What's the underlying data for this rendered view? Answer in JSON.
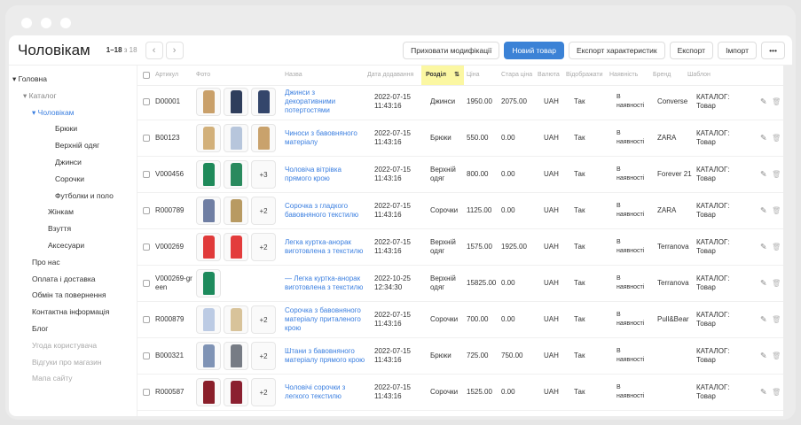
{
  "header": {
    "title": "Чоловікам",
    "range": "1–18",
    "of": "з 18",
    "prev": "‹",
    "next": "›",
    "buttons": {
      "hide_mods": "Приховати модифікації",
      "new_item": "Новий товар",
      "export_chars": "Експорт характеристик",
      "export": "Експорт",
      "import": "Імпорт",
      "more": "•••"
    }
  },
  "accent": "#3b82d6",
  "sidebar": [
    {
      "label": "Головна",
      "level": 0,
      "caret": true,
      "style": "normal"
    },
    {
      "label": "Каталог",
      "level": 1,
      "caret": true,
      "style": "mid"
    },
    {
      "label": "Чоловікам",
      "level": 2,
      "caret": true,
      "style": "blue"
    },
    {
      "label": "Брюки",
      "level": 3,
      "style": "normal"
    },
    {
      "label": "Верхній одяг",
      "level": 3,
      "style": "normal"
    },
    {
      "label": "Джинси",
      "level": 3,
      "style": "normal"
    },
    {
      "label": "Сорочки",
      "level": 3,
      "style": "normal"
    },
    {
      "label": "Футболки и поло",
      "level": 3,
      "style": "normal"
    },
    {
      "label": "Жінкам",
      "level": 2,
      "style": "normal"
    },
    {
      "label": "Взуття",
      "level": 2,
      "style": "normal"
    },
    {
      "label": "Аксесуари",
      "level": 2,
      "style": "normal"
    },
    {
      "label": "Про нас",
      "level": 1,
      "style": "normal"
    },
    {
      "label": "Оплата і доставка",
      "level": 1,
      "style": "normal"
    },
    {
      "label": "Обмін та повернення",
      "level": 1,
      "style": "normal"
    },
    {
      "label": "Контактна інформація",
      "level": 1,
      "style": "normal"
    },
    {
      "label": "Блог",
      "level": 1,
      "style": "normal"
    },
    {
      "label": "Угода користувача",
      "level": 1,
      "style": "gray"
    },
    {
      "label": "Відгуки про магазин",
      "level": 1,
      "style": "gray"
    },
    {
      "label": "Мапа сайту",
      "level": 1,
      "style": "gray"
    }
  ],
  "columns": {
    "sku": "Артикул",
    "photo": "Фото",
    "name": "Назва",
    "date": "Дата додавання",
    "section": "Розділ",
    "sort_icon": "⇅",
    "price": "Ціна",
    "old_price": "Стара ціна",
    "currency": "Валюта",
    "display": "Відображати",
    "availability": "Наявність",
    "brand": "Бренд",
    "template": "Шаблон"
  },
  "rows": [
    {
      "sku": "D00001",
      "photos": [
        "#c9a06a",
        "#2f3e5c",
        "#34466b"
      ],
      "more": "",
      "name": "Джинси з декоративними потертостями",
      "date": "2022-07-15",
      "time": "11:43:16",
      "section": "Джинси",
      "price": "1950.00",
      "old": "2075.00",
      "cur": "UAH",
      "disp": "Так",
      "avail1": "В",
      "avail2": "наявності",
      "brand": "Converse",
      "tpl1": "КАТАЛОГ:",
      "tpl2": "Товар"
    },
    {
      "sku": "B00123",
      "photos": [
        "#d2b07a",
        "#b7c6dc",
        "#c9a26c"
      ],
      "more": "",
      "name": "Чиноси з бавовняного матеріалу",
      "date": "2022-07-15",
      "time": "11:43:16",
      "section": "Брюки",
      "price": "550.00",
      "old": "0.00",
      "cur": "UAH",
      "disp": "Так",
      "avail1": "В",
      "avail2": "наявності",
      "brand": "ZARA",
      "tpl1": "КАТАЛОГ:",
      "tpl2": "Товар"
    },
    {
      "sku": "V000456",
      "photos": [
        "#1f8a5a",
        "#2a8a5e"
      ],
      "more": "+3",
      "name": "Чоловіча вітрівка прямого крою",
      "date": "2022-07-15",
      "time": "11:43:16",
      "section": "Верхній одяг",
      "price": "800.00",
      "old": "0.00",
      "cur": "UAH",
      "disp": "Так",
      "avail1": "В",
      "avail2": "наявності",
      "brand": "Forever 21",
      "tpl1": "КАТАЛОГ:",
      "tpl2": "Товар"
    },
    {
      "sku": "R000789",
      "photos": [
        "#6f7ea3",
        "#b89a62"
      ],
      "more": "+2",
      "name": "Сорочка з гладкого бавовняного текстилю",
      "date": "2022-07-15",
      "time": "11:43:16",
      "section": "Сорочки",
      "price": "1125.00",
      "old": "0.00",
      "cur": "UAH",
      "disp": "Так",
      "avail1": "В",
      "avail2": "наявності",
      "brand": "ZARA",
      "tpl1": "КАТАЛОГ:",
      "tpl2": "Товар"
    },
    {
      "sku": "V000269",
      "photos": [
        "#e03a3a",
        "#e33c3c"
      ],
      "more": "+2",
      "name": "Легка куртка-анорак виготовлена з текстилю",
      "date": "2022-07-15",
      "time": "11:43:16",
      "section": "Верхній одяг",
      "price": "1575.00",
      "old": "1925.00",
      "cur": "UAH",
      "disp": "Так",
      "avail1": "В",
      "avail2": "наявності",
      "brand": "Terranova",
      "tpl1": "КАТАЛОГ:",
      "tpl2": "Товар"
    },
    {
      "sku": "V000269-green",
      "photos": [
        "#1d8a5c"
      ],
      "more": "",
      "name": "— Легка куртка-анорак виготовлена з текстилю",
      "date": "2022-10-25",
      "time": "12:34:30",
      "section": "Верхній одяг",
      "price": "15825.00",
      "old": "0.00",
      "cur": "UAH",
      "disp": "Так",
      "avail1": "В",
      "avail2": "наявності",
      "brand": "Terranova",
      "tpl1": "КАТАЛОГ:",
      "tpl2": "Товар"
    },
    {
      "sku": "R000879",
      "photos": [
        "#bccbe4",
        "#d8c39a"
      ],
      "more": "+2",
      "name": "Сорочка з бавовняного матеріалу приталеного крою",
      "date": "2022-07-15",
      "time": "11:43:16",
      "section": "Сорочки",
      "price": "700.00",
      "old": "0.00",
      "cur": "UAH",
      "disp": "Так",
      "avail1": "В",
      "avail2": "наявності",
      "brand": "Pull&Bear",
      "tpl1": "КАТАЛОГ:",
      "tpl2": "Товар"
    },
    {
      "sku": "B000321",
      "photos": [
        "#7f93b5",
        "#777c85"
      ],
      "more": "+2",
      "name": "Штани з бавовняного матеріалу прямого крою",
      "date": "2022-07-15",
      "time": "11:43:16",
      "section": "Брюки",
      "price": "725.00",
      "old": "750.00",
      "cur": "UAH",
      "disp": "Так",
      "avail1": "В",
      "avail2": "наявності",
      "brand": "",
      "tpl1": "КАТАЛОГ:",
      "tpl2": "Товар"
    },
    {
      "sku": "R000587",
      "photos": [
        "#8a1f2a",
        "#8b2030"
      ],
      "more": "+2",
      "name": "Чоловічі сорочки з легкого текстилю",
      "date": "2022-07-15",
      "time": "11:43:16",
      "section": "Сорочки",
      "price": "1525.00",
      "old": "0.00",
      "cur": "UAH",
      "disp": "Так",
      "avail1": "В",
      "avail2": "наявності",
      "brand": "",
      "tpl1": "КАТАЛОГ:",
      "tpl2": "Товар"
    }
  ],
  "icons": {
    "edit": "✎",
    "delete": "🗑",
    "caret": "▾"
  }
}
